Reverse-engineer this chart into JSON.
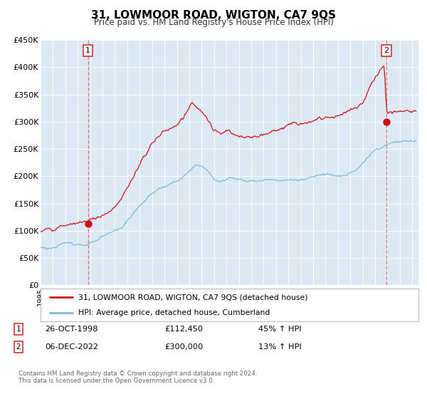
{
  "title": "31, LOWMOOR ROAD, WIGTON, CA7 9QS",
  "subtitle": "Price paid vs. HM Land Registry's House Price Index (HPI)",
  "bg_color": "#dce9f5",
  "fig_bg_color": "#ffffff",
  "hpi_line_color": "#7ab8d9",
  "price_line_color": "#cc1111",
  "vline_color": "#dd6666",
  "ylim": [
    0,
    450000
  ],
  "yticks": [
    0,
    50000,
    100000,
    150000,
    200000,
    250000,
    300000,
    350000,
    400000,
    450000
  ],
  "ytick_labels": [
    "£0",
    "£50K",
    "£100K",
    "£150K",
    "£200K",
    "£250K",
    "£300K",
    "£350K",
    "£400K",
    "£450K"
  ],
  "xmin": 1995.0,
  "xmax": 2025.5,
  "sale1_x": 1998.82,
  "sale1_y": 112450,
  "sale2_x": 2022.92,
  "sale2_y": 300000,
  "legend_line1": "31, LOWMOOR ROAD, WIGTON, CA7 9QS (detached house)",
  "legend_line2": "HPI: Average price, detached house, Cumberland",
  "sale1_label": "1",
  "sale1_date": "26-OCT-1998",
  "sale1_price": "£112,450",
  "sale1_hpi": "45% ↑ HPI",
  "sale2_label": "2",
  "sale2_date": "06-DEC-2022",
  "sale2_price": "£300,000",
  "sale2_hpi": "13% ↑ HPI",
  "footer1": "Contains HM Land Registry data © Crown copyright and database right 2024.",
  "footer2": "This data is licensed under the Open Government Licence v3.0."
}
